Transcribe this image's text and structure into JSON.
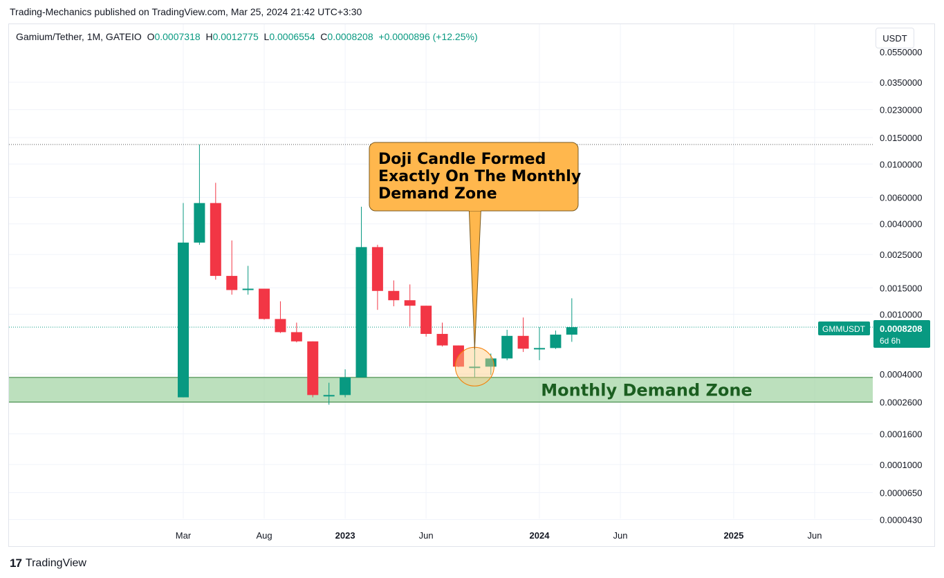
{
  "header": {
    "published_line": "Trading-Mechanics published on TradingView.com, Mar 25, 2024 21:42 UTC+3:30"
  },
  "legend": {
    "symbol": "Gamium/Tether, 1M, GATEIO",
    "o_label": "O",
    "o_value": "0.0007318",
    "h_label": "H",
    "h_value": "0.0012775",
    "l_label": "L",
    "l_value": "0.0006554",
    "c_label": "C",
    "c_value": "0.0008208",
    "change": "+0.0000896 (+12.25%)"
  },
  "currency_button": "USDT",
  "footer": {
    "logo_text": "TradingView"
  },
  "colors": {
    "up": "#089981",
    "down": "#f23645",
    "zone": "#a5d6a7",
    "zone_text": "#1b5e20",
    "callout_bg": "#ffb74d",
    "grid": "#f0f3fa"
  },
  "chart_data": {
    "type": "candlestick",
    "scale": "log",
    "y_ticks": [
      "0.0350000",
      "0.0230000",
      "0.0150000",
      "0.0100000",
      "0.0060000",
      "0.0040000",
      "0.0025000",
      "0.0015000",
      "0.0010000",
      "0.0004000",
      "0.0002600",
      "0.0001600",
      "0.0001000",
      "0.0000650",
      "0.0000430"
    ],
    "y_tick_values": [
      0.035,
      0.023,
      0.015,
      0.01,
      0.006,
      0.004,
      0.0025,
      0.0015,
      0.001,
      0.0004,
      0.00026,
      0.00016,
      0.0001,
      6.5e-05,
      4.3e-05
    ],
    "x_ticks": [
      {
        "label": "Mar",
        "t": 2
      },
      {
        "label": "Aug",
        "t": 7
      },
      {
        "label": "2023",
        "t": 12,
        "bold": true
      },
      {
        "label": "Jun",
        "t": 17
      },
      {
        "label": "2024",
        "t": 24,
        "bold": true
      },
      {
        "label": "Jun",
        "t": 29
      },
      {
        "label": "2025",
        "t": 36,
        "bold": true
      },
      {
        "label": "Jun",
        "t": 41
      }
    ],
    "candles": [
      {
        "t": 2,
        "o": 0.00028,
        "h": 0.0055,
        "l": 0.00028,
        "c": 0.003
      },
      {
        "t": 3,
        "o": 0.003,
        "h": 0.0135,
        "l": 0.0029,
        "c": 0.0055
      },
      {
        "t": 4,
        "o": 0.0055,
        "h": 0.0075,
        "l": 0.0017,
        "c": 0.0018
      },
      {
        "t": 5,
        "o": 0.0018,
        "h": 0.0031,
        "l": 0.00135,
        "c": 0.00145
      },
      {
        "t": 6,
        "o": 0.00145,
        "h": 0.0021,
        "l": 0.00135,
        "c": 0.00148
      },
      {
        "t": 7,
        "o": 0.00148,
        "h": 0.00148,
        "l": 0.00092,
        "c": 0.00093
      },
      {
        "t": 8,
        "o": 0.00093,
        "h": 0.00122,
        "l": 0.00075,
        "c": 0.00076
      },
      {
        "t": 9,
        "o": 0.00076,
        "h": 0.00088,
        "l": 0.00065,
        "c": 0.00066
      },
      {
        "t": 10,
        "o": 0.00066,
        "h": 0.00066,
        "l": 0.00028,
        "c": 0.00029
      },
      {
        "t": 11,
        "o": 0.00029,
        "h": 0.00035,
        "l": 0.00025,
        "c": 0.00029
      },
      {
        "t": 12,
        "o": 0.00029,
        "h": 0.00043,
        "l": 0.00028,
        "c": 0.00038
      },
      {
        "t": 13,
        "o": 0.00038,
        "h": 0.0052,
        "l": 0.00038,
        "c": 0.0028
      },
      {
        "t": 14,
        "o": 0.0028,
        "h": 0.0029,
        "l": 0.00107,
        "c": 0.00143
      },
      {
        "t": 15,
        "o": 0.00143,
        "h": 0.00168,
        "l": 0.00113,
        "c": 0.00124
      },
      {
        "t": 16,
        "o": 0.00124,
        "h": 0.00158,
        "l": 0.00083,
        "c": 0.00114
      },
      {
        "t": 17,
        "o": 0.00114,
        "h": 0.00114,
        "l": 0.00071,
        "c": 0.00074
      },
      {
        "t": 18,
        "o": 0.00074,
        "h": 0.00088,
        "l": 0.00061,
        "c": 0.00062
      },
      {
        "t": 19,
        "o": 0.00062,
        "h": 0.00062,
        "l": 0.000445,
        "c": 0.000448
      },
      {
        "t": 20,
        "o": 0.000448,
        "h": 0.00062,
        "l": 0.00038,
        "c": 0.000448
      },
      {
        "t": 21,
        "o": 0.000448,
        "h": 0.000548,
        "l": 0.000395,
        "c": 0.000508
      },
      {
        "t": 22,
        "o": 0.000508,
        "h": 0.000788,
        "l": 0.000494,
        "c": 0.000718
      },
      {
        "t": 23,
        "o": 0.000718,
        "h": 0.000952,
        "l": 0.000561,
        "c": 0.00059
      },
      {
        "t": 24,
        "o": 0.00059,
        "h": 0.000822,
        "l": 0.000495,
        "c": 0.000596
      },
      {
        "t": 25,
        "o": 0.000596,
        "h": 0.000779,
        "l": 0.000587,
        "c": 0.000732
      },
      {
        "t": 26,
        "o": 0.0007318,
        "h": 0.0012775,
        "l": 0.0006554,
        "c": 0.0008208
      }
    ],
    "resistance_level": 0.0135,
    "last_price_line": 0.0008208,
    "demand_zone": {
      "upper": 0.00038,
      "lower": 0.00026,
      "label": "Monthly Demand Zone"
    },
    "callout": {
      "text_lines": [
        "Doji Candle Formed",
        "Exactly On The Monthly",
        "Demand Zone"
      ],
      "target_t": 20,
      "target_price": 0.000448
    },
    "price_tag": {
      "symbol": "GMMUSDT",
      "price": "0.0008208",
      "countdown": "6d 6h"
    }
  }
}
